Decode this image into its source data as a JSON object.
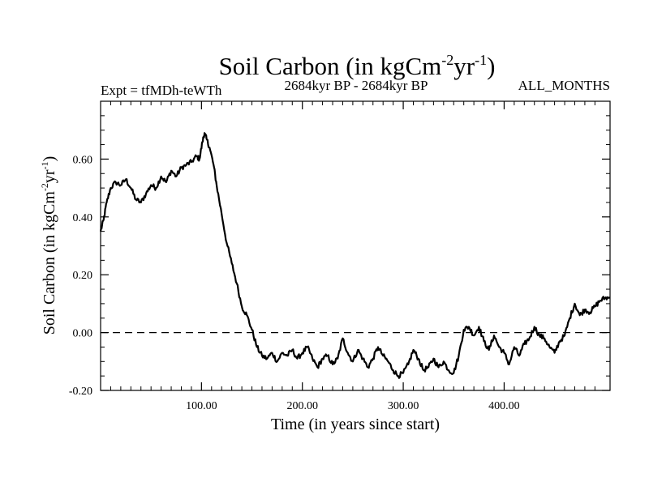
{
  "chart_data": {
    "type": "line",
    "title": {
      "base": "Soil Carbon (in kgCm",
      "exp1": "-2",
      "mid": "yr",
      "exp2": "-1",
      "end": ")"
    },
    "subtitle_left": "Expt = tfMDh-teWTh",
    "subtitle_center": "2684kyr BP - 2684kyr BP",
    "subtitle_right": "ALL_MONTHS",
    "xlabel": "Time (in years since start)",
    "ylabel": {
      "base": "Soil Carbon (in kgCm",
      "exp1": "-2",
      "mid": "yr",
      "exp2": "-1",
      "end": ")"
    },
    "xlim": [
      0,
      505
    ],
    "ylim": [
      -0.2,
      0.8
    ],
    "x_ticks": [
      100,
      200,
      300,
      400
    ],
    "x_tick_labels": [
      "100.00",
      "200.00",
      "300.00",
      "400.00"
    ],
    "y_ticks": [
      -0.2,
      0.0,
      0.2,
      0.4,
      0.6
    ],
    "y_tick_labels": [
      "-0.20",
      "0.00",
      "0.20",
      "0.40",
      "0.60"
    ],
    "zero_line": 0.0,
    "series": [
      {
        "name": "Soil Carbon",
        "color": "#000000",
        "x": [
          0,
          3,
          6,
          10,
          15,
          20,
          25,
          30,
          35,
          40,
          45,
          50,
          55,
          60,
          65,
          70,
          75,
          80,
          85,
          90,
          95,
          98,
          101,
          103,
          105,
          108,
          112,
          115,
          120,
          125,
          130,
          135,
          140,
          145,
          150,
          155,
          160,
          165,
          170,
          175,
          180,
          185,
          190,
          195,
          200,
          205,
          210,
          215,
          220,
          225,
          230,
          235,
          240,
          245,
          250,
          255,
          260,
          265,
          270,
          275,
          280,
          285,
          290,
          295,
          300,
          305,
          310,
          315,
          320,
          325,
          330,
          335,
          340,
          345,
          350,
          355,
          360,
          365,
          370,
          375,
          380,
          385,
          390,
          395,
          400,
          405,
          410,
          415,
          420,
          425,
          430,
          435,
          440,
          445,
          450,
          455,
          460,
          465,
          470,
          475,
          480,
          485,
          490,
          495,
          500,
          505
        ],
        "values": [
          0.35,
          0.39,
          0.45,
          0.5,
          0.52,
          0.51,
          0.53,
          0.5,
          0.46,
          0.45,
          0.48,
          0.51,
          0.5,
          0.54,
          0.52,
          0.56,
          0.54,
          0.57,
          0.58,
          0.59,
          0.61,
          0.6,
          0.66,
          0.69,
          0.67,
          0.64,
          0.58,
          0.51,
          0.41,
          0.31,
          0.24,
          0.17,
          0.09,
          0.06,
          0.01,
          -0.05,
          -0.08,
          -0.09,
          -0.07,
          -0.1,
          -0.07,
          -0.08,
          -0.06,
          -0.09,
          -0.07,
          -0.05,
          -0.09,
          -0.12,
          -0.09,
          -0.08,
          -0.11,
          -0.09,
          -0.02,
          -0.07,
          -0.1,
          -0.06,
          -0.09,
          -0.12,
          -0.09,
          -0.05,
          -0.08,
          -0.1,
          -0.13,
          -0.15,
          -0.14,
          -0.11,
          -0.06,
          -0.09,
          -0.13,
          -0.12,
          -0.09,
          -0.12,
          -0.1,
          -0.13,
          -0.14,
          -0.08,
          0.01,
          0.02,
          -0.01,
          0.02,
          -0.03,
          -0.06,
          -0.01,
          -0.05,
          -0.07,
          -0.11,
          -0.05,
          -0.08,
          -0.04,
          -0.02,
          0.02,
          -0.01,
          -0.02,
          -0.05,
          -0.07,
          -0.03,
          -0.01,
          0.05,
          0.1,
          0.06,
          0.08,
          0.07,
          0.09,
          0.11,
          0.12,
          0.12
        ]
      }
    ]
  }
}
